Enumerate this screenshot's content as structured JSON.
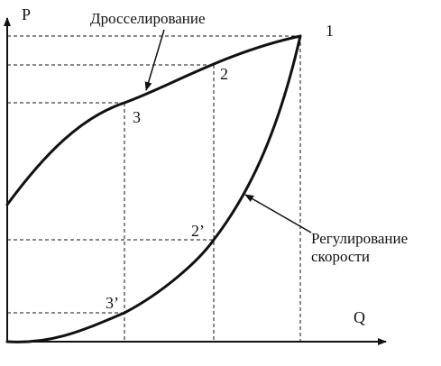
{
  "axes": {
    "y_label": "P",
    "x_label": "Q"
  },
  "curves": {
    "throttling_label": "Дросселирование",
    "speed_label_line1": "Регулирование",
    "speed_label_line2": "скорости"
  },
  "points": {
    "p1": "1",
    "p2": "2",
    "p3": "3",
    "p2_prime": "2’",
    "p3_prime": "3’"
  }
}
